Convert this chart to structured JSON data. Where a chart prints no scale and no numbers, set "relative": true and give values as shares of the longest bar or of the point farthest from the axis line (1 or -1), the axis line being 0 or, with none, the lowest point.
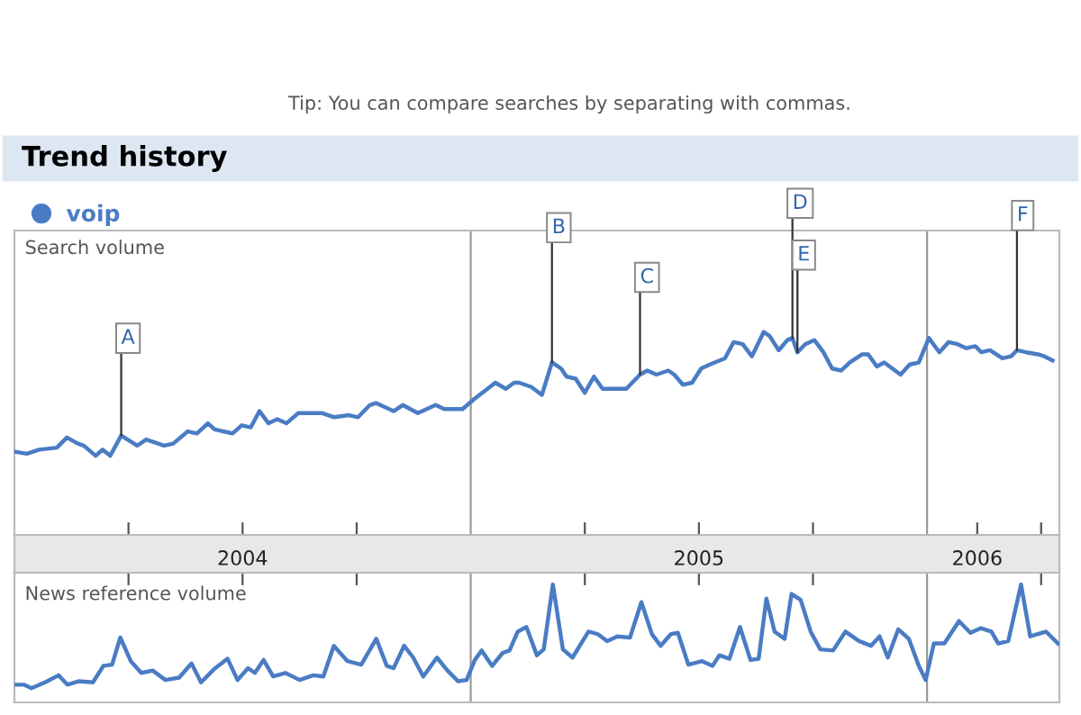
{
  "chart_data": [
    {
      "type": "line",
      "title": "Trend history",
      "ylabel": "Search volume",
      "relative": true,
      "legend": "top left",
      "marker": "none",
      "line_style": "solid",
      "tick_labels": "x",
      "annotations": [
        "Tip: You can compare searches by separating with commas.",
        {
          "text": "A",
          "x": 2004.234,
          "y": 0.49
        },
        {
          "text": "B",
          "x": 2005.178,
          "y": 0.85
        },
        {
          "text": "C",
          "x": 2005.371,
          "y": 0.79
        },
        {
          "text": "D",
          "x": 2005.705,
          "y": 0.97
        },
        {
          "text": "E",
          "x": 2005.716,
          "y": 0.9
        },
        {
          "text": "F",
          "x": 2006.197,
          "y": 0.91
        }
      ],
      "xlim": [
        2004.0,
        2006.29
      ],
      "xticks": [
        {
          "value": 2004.25,
          "label": null
        },
        {
          "value": 2004.5,
          "label": "2004"
        },
        {
          "value": 2004.75,
          "label": null
        },
        {
          "value": 2005.25,
          "label": null
        },
        {
          "value": 2005.5,
          "label": "2005"
        },
        {
          "value": 2005.75,
          "label": null
        },
        {
          "value": 2006.11,
          "label": "2006"
        },
        {
          "value": 2006.25,
          "label": null
        }
      ],
      "ref_lines": [
        {
          "axis": "x",
          "value": 2005.0,
          "label": null,
          "color": "#999999"
        },
        {
          "axis": "x",
          "value": 2006.0,
          "label": null,
          "color": "#999999"
        }
      ],
      "series": [
        {
          "name": "voip",
          "color": "#4a7cc4",
          "x": [
            2004.001,
            2004.027,
            2004.054,
            2004.093,
            2004.115,
            2004.139,
            2004.152,
            2004.178,
            2004.193,
            2004.21,
            2004.234,
            2004.269,
            2004.289,
            2004.328,
            2004.348,
            2004.38,
            2004.4,
            2004.424,
            2004.439,
            2004.478,
            2004.498,
            2004.518,
            2004.537,
            2004.557,
            2004.576,
            2004.596,
            2004.622,
            2004.675,
            2004.701,
            2004.733,
            2004.753,
            2004.779,
            2004.792,
            2004.831,
            2004.851,
            2004.884,
            2004.923,
            2004.942,
            2004.982,
            2005.008,
            2005.054,
            2005.077,
            2005.095,
            2005.106,
            2005.132,
            2005.156,
            2005.178,
            2005.198,
            2005.21,
            2005.23,
            2005.25,
            2005.27,
            2005.289,
            2005.309,
            2005.341,
            2005.371,
            2005.387,
            2005.407,
            2005.433,
            2005.446,
            2005.465,
            2005.485,
            2005.505,
            2005.524,
            2005.557,
            2005.576,
            2005.596,
            2005.616,
            2005.642,
            2005.655,
            2005.675,
            2005.694,
            2005.705,
            2005.716,
            2005.733,
            2005.753,
            2005.773,
            2005.792,
            2005.812,
            2005.831,
            2005.858,
            2005.871,
            2005.89,
            2005.906,
            2005.942,
            2005.962,
            2005.982,
            2006.004,
            2006.027,
            2006.047,
            2006.067,
            2006.086,
            2006.106,
            2006.119,
            2006.138,
            2006.165,
            2006.184,
            2006.197,
            2006.217,
            2006.243,
            2006.257,
            2006.275
          ],
          "values": [
            0.41,
            0.4,
            0.42,
            0.43,
            0.48,
            0.45,
            0.44,
            0.39,
            0.42,
            0.39,
            0.49,
            0.44,
            0.47,
            0.44,
            0.45,
            0.51,
            0.5,
            0.55,
            0.52,
            0.5,
            0.54,
            0.53,
            0.61,
            0.55,
            0.57,
            0.55,
            0.6,
            0.6,
            0.58,
            0.59,
            0.58,
            0.64,
            0.65,
            0.61,
            0.64,
            0.6,
            0.64,
            0.62,
            0.62,
            0.67,
            0.75,
            0.72,
            0.75,
            0.75,
            0.73,
            0.69,
            0.85,
            0.82,
            0.78,
            0.77,
            0.7,
            0.78,
            0.72,
            0.72,
            0.72,
            0.79,
            0.81,
            0.79,
            0.81,
            0.79,
            0.74,
            0.75,
            0.82,
            0.84,
            0.87,
            0.95,
            0.94,
            0.88,
            1.0,
            0.98,
            0.91,
            0.96,
            0.97,
            0.9,
            0.94,
            0.96,
            0.9,
            0.82,
            0.81,
            0.85,
            0.89,
            0.89,
            0.83,
            0.85,
            0.79,
            0.84,
            0.85,
            0.97,
            0.9,
            0.95,
            0.94,
            0.92,
            0.93,
            0.9,
            0.91,
            0.87,
            0.88,
            0.91,
            0.9,
            0.89,
            0.88,
            0.86
          ]
        }
      ]
    },
    {
      "type": "line",
      "ylabel": "News reference volume",
      "relative": true,
      "marker": "none",
      "line_style": "solid",
      "tick_labels": false,
      "xlim": [
        2004.0,
        2006.29
      ],
      "xticks": [
        {
          "value": 2004.25,
          "label": null
        },
        {
          "value": 2004.5,
          "label": null
        },
        {
          "value": 2004.75,
          "label": null
        },
        {
          "value": 2005.25,
          "label": null
        },
        {
          "value": 2005.5,
          "label": null
        },
        {
          "value": 2005.75,
          "label": null
        },
        {
          "value": 2006.25,
          "label": null
        }
      ],
      "ref_lines": [
        {
          "axis": "x",
          "value": 2005.0,
          "label": null,
          "color": "#999999"
        },
        {
          "axis": "x",
          "value": 2006.0,
          "label": null,
          "color": "#999999"
        }
      ],
      "series": [
        {
          "color": "#4a7cc4",
          "x": [
            2004.0,
            2004.021,
            2004.037,
            2004.067,
            2004.097,
            2004.116,
            2004.142,
            2004.172,
            2004.195,
            2004.214,
            2004.232,
            2004.255,
            2004.278,
            2004.303,
            2004.331,
            2004.361,
            2004.388,
            2004.409,
            2004.437,
            2004.467,
            2004.489,
            2004.512,
            2004.527,
            2004.546,
            2004.567,
            2004.594,
            2004.625,
            2004.655,
            2004.677,
            2004.7,
            2004.73,
            2004.76,
            2004.793,
            2004.816,
            2004.831,
            2004.854,
            2004.874,
            2004.896,
            2004.926,
            2004.949,
            2004.972,
            2004.991,
            2005.009,
            2005.024,
            2005.047,
            2005.07,
            2005.085,
            2005.103,
            2005.122,
            2005.145,
            2005.16,
            2005.18,
            2005.202,
            2005.223,
            2005.258,
            2005.278,
            2005.299,
            2005.321,
            2005.349,
            2005.374,
            2005.397,
            2005.416,
            2005.439,
            2005.454,
            2005.477,
            2005.507,
            2005.53,
            2005.545,
            2005.567,
            2005.59,
            2005.613,
            2005.631,
            2005.648,
            2005.666,
            2005.688,
            2005.703,
            2005.723,
            2005.745,
            2005.766,
            2005.794,
            2005.821,
            2005.851,
            2005.877,
            2005.896,
            2005.914,
            2005.937,
            2005.96,
            2005.982,
            2005.997,
            2006.015,
            2006.038,
            2006.07,
            2006.095,
            2006.118,
            2006.141,
            2006.156,
            2006.178,
            2006.206,
            2006.226,
            2006.261,
            2006.287
          ],
          "values": [
            0.15,
            0.15,
            0.12,
            0.17,
            0.23,
            0.15,
            0.18,
            0.17,
            0.31,
            0.32,
            0.55,
            0.35,
            0.25,
            0.27,
            0.19,
            0.21,
            0.33,
            0.17,
            0.28,
            0.37,
            0.19,
            0.29,
            0.25,
            0.36,
            0.22,
            0.25,
            0.19,
            0.23,
            0.22,
            0.48,
            0.35,
            0.32,
            0.54,
            0.31,
            0.29,
            0.48,
            0.38,
            0.22,
            0.38,
            0.27,
            0.18,
            0.19,
            0.36,
            0.44,
            0.31,
            0.42,
            0.44,
            0.6,
            0.64,
            0.4,
            0.45,
            1.0,
            0.45,
            0.38,
            0.6,
            0.58,
            0.52,
            0.56,
            0.55,
            0.85,
            0.58,
            0.48,
            0.58,
            0.59,
            0.32,
            0.35,
            0.31,
            0.4,
            0.37,
            0.64,
            0.36,
            0.37,
            0.88,
            0.6,
            0.54,
            0.92,
            0.87,
            0.6,
            0.45,
            0.44,
            0.6,
            0.52,
            0.48,
            0.56,
            0.38,
            0.62,
            0.54,
            0.31,
            0.19,
            0.5,
            0.5,
            0.69,
            0.59,
            0.63,
            0.6,
            0.5,
            0.52,
            1.0,
            0.56,
            0.6,
            0.5
          ]
        }
      ]
    }
  ]
}
